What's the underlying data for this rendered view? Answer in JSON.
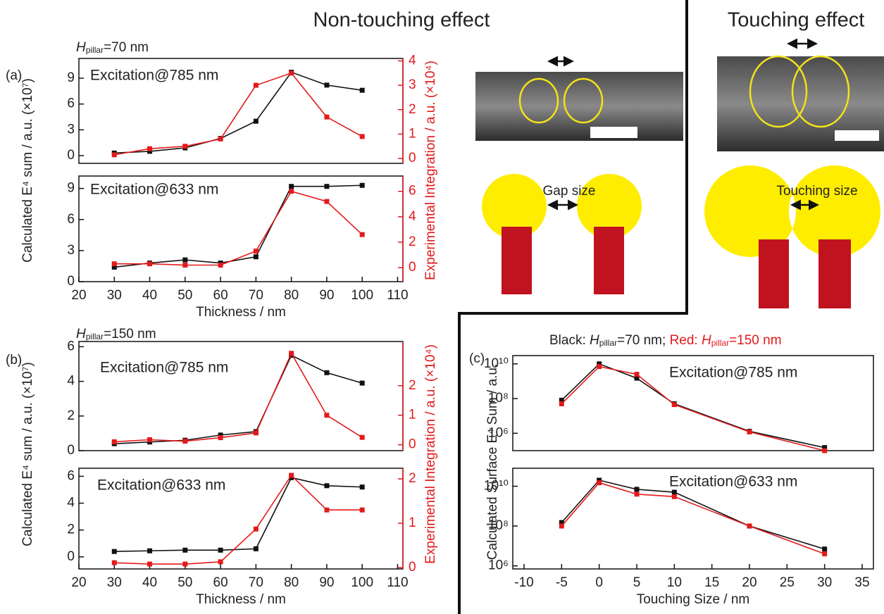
{
  "figure": {
    "title_left": "Non-touching effect",
    "title_right": "Touching effect",
    "panel_a": {
      "label": "(a)",
      "header": [
        "H",
        "pillar",
        "=70 nm"
      ],
      "y_label": "Calculated E⁴ sum / a.u. (×10⁷)",
      "y2_label": "Experimental Integration / a.u. (×10⁴)"
    },
    "panel_b": {
      "label": "(b)",
      "header": [
        "H",
        "pillar",
        "=150 nm"
      ],
      "y_label": "Calculated E⁴ sum / a.u. (×10⁷)",
      "y2_label": "Experimental Integration / a.u. (×10⁴)"
    },
    "panel_c": {
      "label": "(c)",
      "header": [
        "Black: ",
        "H",
        "pillar",
        "=70 nm; ",
        "Red: ",
        "H",
        "pillar",
        "=150 nm"
      ],
      "y_label": "Calculated Surface E⁴ Sum / a.u."
    },
    "gap_label": "Gap size",
    "touching_label": "Touching size"
  },
  "chart_data": [
    {
      "type": "line",
      "annotation": "Excitation@785 nm",
      "x": [
        30,
        40,
        50,
        60,
        70,
        80,
        90,
        100
      ],
      "xlim": [
        20,
        111.5
      ],
      "ylim": [
        -0.9,
        11.3
      ],
      "yticks": [
        0,
        3,
        6,
        9
      ],
      "y2lim": [
        -0.2,
        4.1
      ],
      "y2ticks": [
        0,
        1,
        2,
        3,
        4
      ],
      "series": [
        {
          "color": "#111111",
          "values": [
            0.3,
            0.5,
            0.9,
            2.0,
            4.0,
            9.7,
            8.2,
            7.6
          ]
        },
        {
          "color": "#e31a1c",
          "axis": "y2",
          "values": [
            0.15,
            0.4,
            0.5,
            0.8,
            3.0,
            3.5,
            1.7,
            0.9
          ]
        }
      ]
    },
    {
      "type": "line",
      "annotation": "Excitation@633 nm",
      "x": [
        30,
        40,
        50,
        60,
        70,
        80,
        90,
        100
      ],
      "xlim": [
        20,
        111.5
      ],
      "xticks": [
        20,
        30,
        40,
        50,
        60,
        70,
        80,
        90,
        100,
        110
      ],
      "x_label": "Thickness / nm",
      "ylim": [
        0,
        10.2
      ],
      "yticks": [
        0,
        3,
        6,
        9
      ],
      "y2lim": [
        -1.1,
        7.2
      ],
      "y2ticks": [
        0,
        2,
        4,
        6
      ],
      "series": [
        {
          "color": "#111111",
          "values": [
            1.4,
            1.8,
            2.1,
            1.8,
            2.4,
            9.2,
            9.2,
            9.3
          ]
        },
        {
          "color": "#e31a1c",
          "axis": "y2",
          "values": [
            0.3,
            0.3,
            0.2,
            0.2,
            1.3,
            6.0,
            5.2,
            2.6
          ]
        }
      ]
    },
    {
      "type": "line",
      "annotation": "Excitation@785 nm",
      "x": [
        30,
        40,
        50,
        60,
        70,
        80,
        90,
        100
      ],
      "xlim": [
        20,
        111.5
      ],
      "ylim": [
        0,
        6.3
      ],
      "yticks": [
        0,
        2,
        4,
        6
      ],
      "y2lim": [
        -0.2,
        3.5
      ],
      "y2ticks": [
        0,
        1,
        2
      ],
      "series": [
        {
          "color": "#111111",
          "values": [
            0.4,
            0.5,
            0.6,
            0.9,
            1.1,
            5.5,
            4.5,
            3.9
          ]
        },
        {
          "color": "#e31a1c",
          "axis": "y2",
          "values": [
            0.1,
            0.17,
            0.12,
            0.24,
            0.4,
            3.1,
            1.0,
            0.25
          ]
        }
      ]
    },
    {
      "type": "line",
      "annotation": "Excitation@633 nm",
      "x": [
        30,
        40,
        50,
        60,
        70,
        80,
        90,
        100
      ],
      "xlim": [
        20,
        111.5
      ],
      "xticks": [
        20,
        30,
        40,
        50,
        60,
        70,
        80,
        90,
        100,
        110
      ],
      "x_label": "Thickness / nm",
      "ylim": [
        -0.9,
        6.6
      ],
      "yticks": [
        0,
        2,
        4,
        6
      ],
      "y2lim": [
        -0.03,
        2.24
      ],
      "y2ticks": [
        0,
        1,
        2
      ],
      "series": [
        {
          "color": "#111111",
          "values": [
            0.4,
            0.45,
            0.5,
            0.5,
            0.6,
            5.9,
            5.3,
            5.2
          ]
        },
        {
          "color": "#e31a1c",
          "axis": "y2",
          "values": [
            0.11,
            0.08,
            0.08,
            0.13,
            0.87,
            2.08,
            1.3,
            1.3
          ]
        }
      ]
    },
    {
      "type": "line",
      "annotation": "Excitation@785 nm",
      "x": [
        -5,
        0,
        5,
        10,
        20,
        30
      ],
      "xlim": [
        -11.5,
        36.5
      ],
      "yscale": "log",
      "ylim": [
        100000,
        30000000000
      ],
      "yticks": [
        {
          "value": 1000000,
          "label": "10⁶"
        },
        {
          "value": 100000000,
          "label": "10⁸"
        },
        {
          "value": 10000000000,
          "label": "10¹⁰"
        }
      ],
      "series": [
        {
          "color": "#111111",
          "values": [
            80000000,
            10000000000,
            1500000000,
            50000000,
            1300000,
            150000
          ]
        },
        {
          "color": "#e31a1c",
          "values": [
            50000000,
            7000000000,
            2500000000,
            45000000,
            1200000,
            100000
          ]
        }
      ]
    },
    {
      "type": "line",
      "annotation": "Excitation@633 nm",
      "x": [
        -5,
        0,
        5,
        10,
        20,
        30
      ],
      "xlim": [
        -11.5,
        36.5
      ],
      "xticks": [
        -10,
        -5,
        0,
        5,
        10,
        15,
        20,
        25,
        30,
        35
      ],
      "x_label": "Touching Size / nm",
      "yscale": "log",
      "ylim": [
        700000,
        80000000000
      ],
      "yticks": [
        {
          "value": 1000000,
          "label": "10⁶"
        },
        {
          "value": 100000000,
          "label": "10⁸"
        },
        {
          "value": 10000000000,
          "label": "10¹⁰"
        }
      ],
      "series": [
        {
          "color": "#111111",
          "values": [
            150000000,
            20000000000,
            7000000000,
            5000000000,
            100000000,
            7000000
          ]
        },
        {
          "color": "#e31a1c",
          "values": [
            100000000,
            15000000000,
            4000000000,
            3000000000,
            100000000,
            4000000
          ]
        }
      ]
    }
  ]
}
